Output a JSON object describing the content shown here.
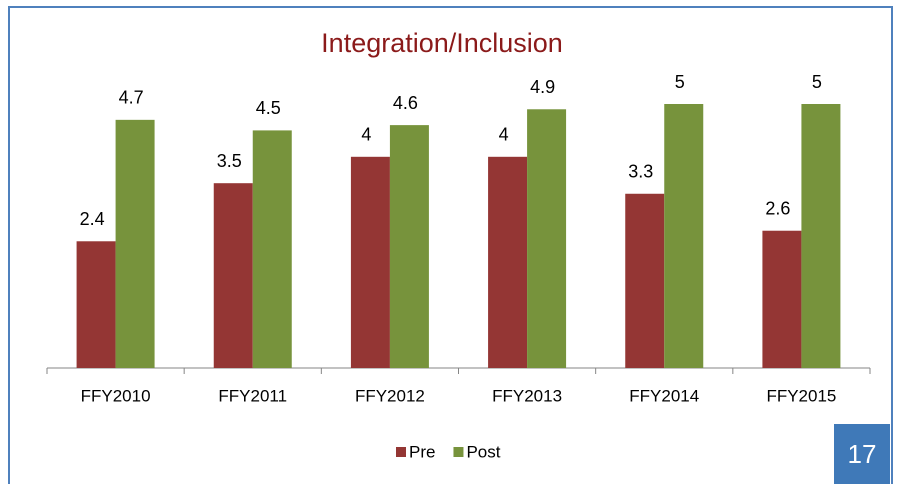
{
  "chart_data": {
    "type": "bar",
    "title": "Integration/Inclusion",
    "categories": [
      "FFY2010",
      "FFY2011",
      "FFY2012",
      "FFY2013",
      "FFY2014",
      "FFY2015"
    ],
    "series": [
      {
        "name": "Pre",
        "color": "#943634",
        "values": [
          2.4,
          3.5,
          4,
          4,
          3.3,
          2.6
        ]
      },
      {
        "name": "Post",
        "color": "#77933c",
        "values": [
          4.7,
          4.5,
          4.6,
          4.9,
          5,
          5
        ]
      }
    ],
    "ylim": [
      0,
      5
    ],
    "legend": "bottom"
  },
  "page_number": "17"
}
